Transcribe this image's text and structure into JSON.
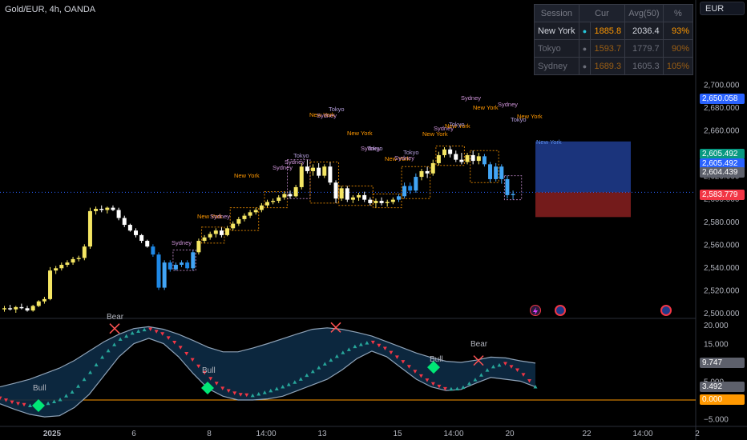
{
  "symbol_title": "Gold/EUR, 4h, OANDA",
  "currency_button": "EUR",
  "session_table": {
    "headers": [
      "Session",
      "Cur",
      "Avg(50)",
      "%"
    ],
    "rows": [
      {
        "session": "New York",
        "dot": "●",
        "cur": "1885.8",
        "avg": "2036.4",
        "pct": "93%",
        "active": true
      },
      {
        "session": "Tokyo",
        "dot": "●",
        "cur": "1593.7",
        "avg": "1779.7",
        "pct": "90%",
        "active": false
      },
      {
        "session": "Sydney",
        "dot": "●",
        "cur": "1689.3",
        "avg": "1605.3",
        "pct": "105%",
        "active": false
      }
    ]
  },
  "price_axis": {
    "ticks": [
      "2,700.000",
      "2,680.000",
      "2,660.000",
      "2,640.000",
      "2,620.000",
      "2,600.000",
      "2,580.000",
      "2,560.000",
      "2,540.000",
      "2,520.000",
      "2,500.000"
    ],
    "labels": [
      {
        "text": "2,650.058",
        "color": "#2962ff"
      },
      {
        "text": "2,605.492",
        "color": "#089981"
      },
      {
        "text": "2,605.492",
        "color": "#2962ff"
      },
      {
        "text": "2,604.439",
        "color": "#5d606b"
      },
      {
        "text": "2,583.779",
        "color": "#f23645"
      }
    ]
  },
  "osc_axis": {
    "ticks": [
      "20.000",
      "15.000",
      "10.000",
      "5.000",
      "0.000",
      "−5.000"
    ],
    "labels": [
      {
        "text": "9.747",
        "color": "#5d606b"
      },
      {
        "text": "3.492",
        "color": "#5d606b"
      },
      {
        "text": "0.000",
        "color": "#ff9800"
      }
    ]
  },
  "time_axis": [
    "2025",
    "6",
    "8",
    "14:00",
    "13",
    "15",
    "14:00",
    "20",
    "22",
    "14:00",
    "2"
  ],
  "session_labels": [
    "Sydney",
    "New York",
    "Sydney",
    "New York",
    "Sydney",
    "Sydney",
    "Tokyo",
    "New York",
    "Sydney",
    "Tokyo",
    "New York",
    "Sydney",
    "Tokyo",
    "New York",
    "Sydney",
    "Tokyo",
    "New York",
    "Sydney",
    "New York",
    "Tokyo",
    "Sydney",
    "New York",
    "Sydney",
    "Tokyo",
    "New York"
  ],
  "signals": [
    "Bull",
    "Bear",
    "Bull",
    "Bull",
    "Bear"
  ],
  "colors": {
    "bull_candle": "#f5e663",
    "bear_candle": "#ffffff",
    "blue_candle": "#42a5f5",
    "new_york": "#ff9800",
    "tokyo": "#b39ddb",
    "sydney": "#ce93d8",
    "up_tri": "#26a69a",
    "down_tri": "#f23645",
    "band_fill": "#0d2b45",
    "zero_line": "#ff9800"
  },
  "price_candles": [
    [
      2503,
      2506,
      2501,
      2504
    ],
    [
      2504,
      2507,
      2502,
      2503
    ],
    [
      2503,
      2506,
      2500,
      2505
    ],
    [
      2505,
      2508,
      2503,
      2504
    ],
    [
      2504,
      2506,
      2501,
      2502
    ],
    [
      2502,
      2507,
      2501,
      2506
    ],
    [
      2506,
      2511,
      2505,
      2510
    ],
    [
      2510,
      2514,
      2508,
      2512
    ],
    [
      2512,
      2540,
      2511,
      2537
    ],
    [
      2537,
      2541,
      2534,
      2539
    ],
    [
      2539,
      2544,
      2537,
      2542
    ],
    [
      2542,
      2546,
      2540,
      2544
    ],
    [
      2544,
      2549,
      2542,
      2547
    ],
    [
      2547,
      2550,
      2545,
      2548
    ],
    [
      2548,
      2560,
      2546,
      2558
    ],
    [
      2558,
      2592,
      2556,
      2589
    ],
    [
      2589,
      2593,
      2586,
      2591
    ],
    [
      2591,
      2594,
      2588,
      2590
    ],
    [
      2590,
      2593,
      2587,
      2592
    ],
    [
      2592,
      2594,
      2589,
      2590
    ],
    [
      2590,
      2592,
      2581,
      2583
    ],
    [
      2583,
      2585,
      2575,
      2577
    ],
    [
      2577,
      2578,
      2571,
      2572
    ],
    [
      2572,
      2574,
      2566,
      2568
    ],
    [
      2568,
      2569,
      2561,
      2563
    ],
    [
      2563,
      2564,
      2557,
      2558
    ],
    [
      2558,
      2560,
      2549,
      2551
    ],
    [
      2551,
      2553,
      2520,
      2522
    ],
    [
      2522,
      2546,
      2520,
      2544
    ],
    [
      2544,
      2546,
      2536,
      2538
    ],
    [
      2538,
      2544,
      2537,
      2542
    ],
    [
      2542,
      2546,
      2540,
      2544
    ],
    [
      2544,
      2546,
      2538,
      2539
    ],
    [
      2539,
      2555,
      2537,
      2553
    ],
    [
      2553,
      2565,
      2551,
      2563
    ],
    [
      2563,
      2568,
      2561,
      2566
    ],
    [
      2566,
      2571,
      2564,
      2569
    ],
    [
      2569,
      2574,
      2566,
      2572
    ],
    [
      2572,
      2575,
      2566,
      2568
    ],
    [
      2568,
      2576,
      2567,
      2574
    ],
    [
      2574,
      2580,
      2572,
      2578
    ],
    [
      2578,
      2584,
      2576,
      2582
    ],
    [
      2582,
      2587,
      2580,
      2585
    ],
    [
      2585,
      2590,
      2583,
      2588
    ],
    [
      2588,
      2592,
      2586,
      2590
    ],
    [
      2590,
      2596,
      2588,
      2594
    ],
    [
      2594,
      2599,
      2592,
      2597
    ],
    [
      2597,
      2600,
      2595,
      2598
    ],
    [
      2598,
      2603,
      2596,
      2601
    ],
    [
      2601,
      2606,
      2599,
      2604
    ],
    [
      2604,
      2607,
      2600,
      2602
    ],
    [
      2602,
      2612,
      2601,
      2610
    ],
    [
      2610,
      2631,
      2608,
      2628
    ],
    [
      2628,
      2634,
      2622,
      2624
    ],
    [
      2624,
      2630,
      2620,
      2627
    ],
    [
      2627,
      2631,
      2618,
      2620
    ],
    [
      2620,
      2630,
      2618,
      2628
    ],
    [
      2628,
      2632,
      2612,
      2614
    ],
    [
      2614,
      2616,
      2596,
      2600
    ],
    [
      2600,
      2611,
      2598,
      2609
    ],
    [
      2609,
      2611,
      2597,
      2599
    ],
    [
      2599,
      2603,
      2596,
      2601
    ],
    [
      2601,
      2605,
      2598,
      2603
    ],
    [
      2603,
      2606,
      2597,
      2599
    ],
    [
      2599,
      2601,
      2594,
      2596
    ],
    [
      2596,
      2600,
      2592,
      2598
    ],
    [
      2598,
      2601,
      2594,
      2596
    ],
    [
      2596,
      2599,
      2593,
      2597
    ],
    [
      2597,
      2601,
      2595,
      2599
    ],
    [
      2599,
      2604,
      2597,
      2602
    ],
    [
      2602,
      2614,
      2600,
      2611
    ],
    [
      2611,
      2614,
      2604,
      2607
    ],
    [
      2607,
      2622,
      2605,
      2619
    ],
    [
      2619,
      2626,
      2616,
      2624
    ],
    [
      2624,
      2628,
      2618,
      2622
    ],
    [
      2622,
      2634,
      2620,
      2631
    ],
    [
      2631,
      2641,
      2629,
      2638
    ],
    [
      2638,
      2645,
      2636,
      2643
    ],
    [
      2643,
      2646,
      2636,
      2639
    ],
    [
      2639,
      2642,
      2632,
      2634
    ],
    [
      2634,
      2640,
      2630,
      2632
    ],
    [
      2632,
      2640,
      2630,
      2638
    ],
    [
      2638,
      2642,
      2630,
      2633
    ],
    [
      2633,
      2640,
      2630,
      2637
    ],
    [
      2637,
      2639,
      2628,
      2630
    ],
    [
      2630,
      2632,
      2614,
      2617
    ],
    [
      2617,
      2631,
      2615,
      2628
    ],
    [
      2628,
      2630,
      2613,
      2617
    ],
    [
      2617,
      2620,
      2600,
      2603
    ],
    [
      2603,
      2607,
      2599,
      2604
    ]
  ],
  "osc_upper": [
    3.5,
    4.5,
    5.5,
    7,
    8.5,
    10.5,
    13,
    15.5,
    17.5,
    19,
    19.5,
    18.8,
    17.5,
    15.8,
    14,
    12.8,
    12.8,
    13.8,
    15,
    16.3,
    17.6,
    18.8,
    19.2,
    18.8,
    18,
    17,
    15.5,
    14,
    12.5,
    11.3,
    10.3,
    10,
    10.6,
    11.4,
    11.2,
    10.4,
    9.8
  ],
  "osc_lower": [
    -1,
    -2.5,
    -3.8,
    -4.5,
    -4.2,
    -2,
    1.5,
    6.5,
    11.5,
    15,
    16.4,
    15,
    11.5,
    7,
    3,
    1,
    0,
    0,
    0.3,
    1,
    2.5,
    4,
    5.5,
    8,
    11,
    13,
    11.5,
    8.5,
    5.5,
    3.5,
    2.5,
    2.8,
    4.5,
    6,
    5.5,
    5,
    3.5
  ],
  "osc_signal": [
    0.5,
    -0.8,
    -1.5,
    -1.2,
    0,
    2.5,
    7,
    12,
    16,
    18,
    19,
    17.5,
    14.5,
    10.5,
    6.2,
    3,
    1.5,
    1.2,
    2.2,
    3.5,
    5,
    7.5,
    10,
    12.5,
    14.5,
    15.5,
    13.5,
    10.5,
    7.3,
    4.5,
    2.9,
    3,
    5.5,
    8.7,
    9.7,
    7.5,
    3.5
  ]
}
